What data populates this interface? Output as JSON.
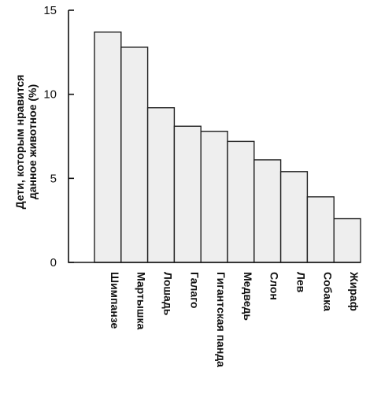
{
  "chart_data": {
    "type": "bar",
    "title": "",
    "ylabel_lines": [
      "Дети, которым нравится",
      "данное животное (%)"
    ],
    "xlabel": "",
    "ylim": [
      0,
      15
    ],
    "yticks": [
      0,
      5,
      10,
      15
    ],
    "categories": [
      "Шимпанзе",
      "Мартышка",
      "Лошадь",
      "Галаго",
      "Гигантская панда",
      "Медведь",
      "Слон",
      "Лев",
      "Собака",
      "Жираф"
    ],
    "values": [
      13.7,
      12.8,
      9.2,
      8.1,
      7.8,
      7.2,
      6.1,
      5.4,
      3.9,
      2.6
    ],
    "grid": false,
    "bar_color": "#eeeeee",
    "edge_color": "#222222"
  }
}
